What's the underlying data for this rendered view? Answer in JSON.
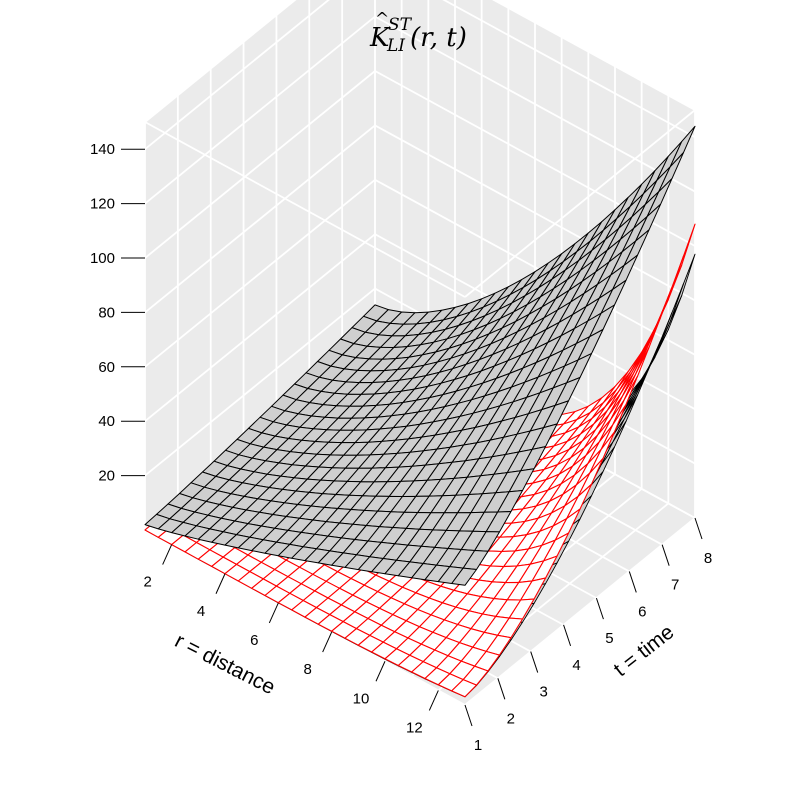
{
  "chart_data": {
    "type": "surface",
    "title": {
      "base": "K",
      "hat": "^",
      "superscript": "ST",
      "subscript": "LI",
      "arguments": "(r, t)"
    },
    "xlabel": "r = distance",
    "ylabel": "t = time",
    "zlabel": "",
    "xlim": [
      1,
      13
    ],
    "ylim": [
      1,
      8
    ],
    "zlim": [
      0,
      150
    ],
    "x_ticks": [
      2,
      4,
      6,
      8,
      10,
      12
    ],
    "y_ticks": [
      1,
      2,
      3,
      4,
      5,
      6,
      7,
      8
    ],
    "z_ticks": [
      20,
      40,
      60,
      80,
      100,
      120,
      140
    ],
    "grid": true,
    "colors": {
      "background_panel": "#ebebeb",
      "grid_line": "#ffffff",
      "envelope_mesh": "#000000",
      "envelope_fill": "#cfcfcf",
      "estimate_mesh": "#ff0000",
      "estimate_fill": "#ffffff"
    },
    "series": [
      {
        "role": "upper envelope",
        "corner_values": {
          "r1_t1": 2,
          "r13_t1": 44,
          "r1_t8": 14,
          "r13_t8": 144
        }
      },
      {
        "role": "observed estimate",
        "corner_values": {
          "r1_t1": 0,
          "r13_t1": 3,
          "r13_t8": 108
        }
      },
      {
        "role": "lower envelope",
        "corner_values": {
          "r1_t1": 0,
          "r13_t1": 3,
          "r13_t8": 97
        }
      }
    ]
  }
}
